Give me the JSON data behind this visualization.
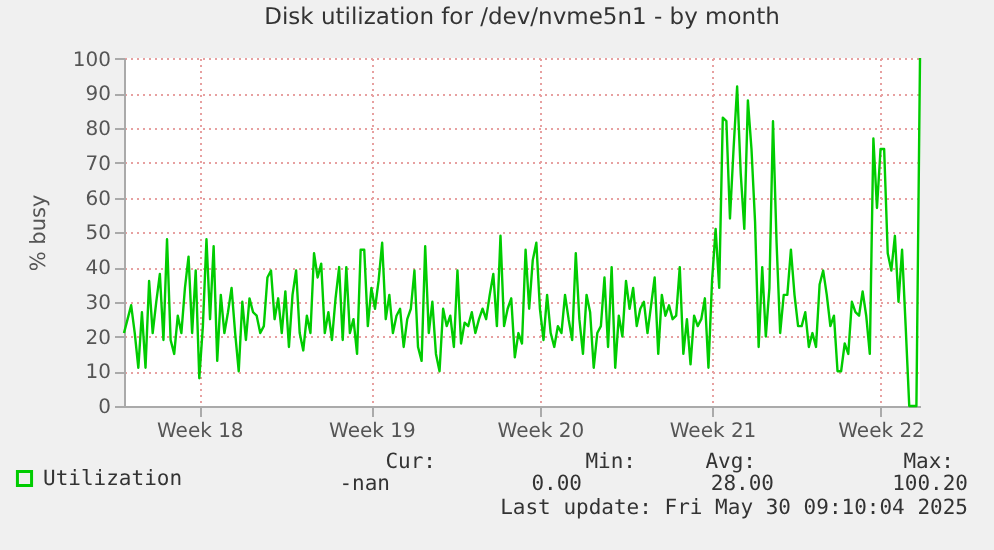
{
  "chart_data": {
    "type": "line",
    "title": "Disk utilization for /dev/nvme5n1 - by month",
    "ylabel": "% busy",
    "categories": [
      null,
      null,
      null,
      null,
      null,
      null,
      null,
      null,
      null,
      null,
      null,
      null,
      null,
      null,
      null,
      null,
      null,
      null,
      null,
      null,
      null,
      "Week 18",
      null,
      null,
      null,
      null,
      null,
      null,
      null,
      null,
      null,
      null,
      null,
      null,
      null,
      null,
      null,
      null,
      null,
      null,
      null,
      null,
      null,
      null,
      null,
      null,
      null,
      null,
      null,
      null,
      null,
      null,
      null,
      null,
      null,
      null,
      null,
      null,
      null,
      null,
      null,
      null,
      null,
      null,
      null,
      null,
      null,
      null,
      null,
      "Week 19",
      null,
      null,
      null,
      null,
      null,
      null,
      null,
      null,
      null,
      null,
      null,
      null,
      null,
      null,
      null,
      null,
      null,
      null,
      null,
      null,
      null,
      null,
      null,
      null,
      null,
      null,
      null,
      null,
      null,
      null,
      null,
      null,
      null,
      null,
      null,
      null,
      null,
      null,
      null,
      null,
      null,
      null,
      null,
      null,
      null,
      null,
      "Week 20",
      null,
      null,
      null,
      null,
      null,
      null,
      null,
      null,
      null,
      null,
      null,
      null,
      null,
      null,
      null,
      null,
      null,
      null,
      null,
      null,
      null,
      null,
      null,
      null,
      null,
      null,
      null,
      null,
      null,
      null,
      null,
      null,
      null,
      null,
      null,
      null,
      null,
      null,
      null,
      null,
      null,
      null,
      null,
      null,
      null,
      null,
      null,
      "Week 21",
      null,
      null,
      null,
      null,
      null,
      null,
      null,
      null,
      null,
      null,
      null,
      null,
      null,
      null,
      null,
      null,
      null,
      null,
      null,
      null,
      null,
      null,
      null,
      null,
      null,
      null,
      null,
      null,
      null,
      null,
      null,
      null,
      null,
      null,
      null,
      null,
      null,
      null,
      null,
      null,
      null,
      null,
      null,
      null,
      null,
      null,
      "Week 22",
      null,
      null,
      null,
      null,
      null,
      null,
      null,
      null,
      null,
      null,
      null
    ],
    "ylim": [
      0,
      100.2
    ],
    "yticks": [
      0,
      10,
      20,
      30,
      40,
      50,
      60,
      70,
      80,
      90,
      100
    ],
    "grid": true,
    "legend": "bottom left",
    "series": [
      {
        "name": "Utilization",
        "color": "#00cc00",
        "marker": "none",
        "values": [
          21,
          25,
          29,
          21,
          11,
          27,
          11,
          36,
          21,
          30,
          38,
          19,
          48,
          19,
          15,
          26,
          21,
          34,
          43,
          21,
          39,
          8,
          23,
          48,
          25,
          46,
          13,
          32,
          21,
          27,
          34,
          21,
          10,
          30,
          19,
          31,
          27,
          26,
          21,
          23,
          37,
          39,
          25,
          31,
          21,
          33,
          17,
          32,
          39,
          21,
          16,
          26,
          21,
          44,
          37,
          41,
          21,
          27,
          19,
          31,
          40,
          19,
          40,
          21,
          25,
          15,
          45,
          45,
          23,
          34,
          28,
          36,
          47,
          25,
          32,
          21,
          26,
          28,
          17,
          25,
          28,
          39,
          17,
          13,
          46,
          21,
          30,
          15,
          10,
          28,
          23,
          26,
          17,
          39,
          18,
          24,
          23,
          27,
          21,
          25,
          28,
          25,
          32,
          38,
          23,
          49,
          23,
          28,
          31,
          14,
          21,
          18,
          45,
          28,
          42,
          47,
          28,
          19,
          32,
          21,
          17,
          23,
          21,
          32,
          25,
          19,
          44,
          25,
          15,
          32,
          27,
          11,
          21,
          23,
          37,
          17,
          40,
          11,
          26,
          20,
          36,
          28,
          34,
          23,
          28,
          30,
          21,
          29,
          37,
          15,
          32,
          26,
          29,
          25,
          26,
          40,
          15,
          25,
          12,
          26,
          23,
          25,
          31,
          11,
          36,
          51,
          34,
          83,
          82,
          54,
          74,
          92,
          67,
          51,
          88,
          74,
          53,
          17,
          40,
          20,
          34,
          82,
          47,
          21,
          32,
          32,
          45,
          32,
          23,
          23,
          27,
          17,
          21,
          17,
          35,
          39,
          32,
          23,
          26,
          10,
          10,
          18,
          15,
          30,
          27,
          26,
          33,
          26,
          15,
          77,
          57,
          74,
          74,
          44,
          39,
          49,
          30,
          45,
          23,
          0,
          0,
          0,
          100.2
        ]
      }
    ],
    "annotations": [
      "Cur:",
      "Min:",
      "Avg:",
      "Max:",
      "-nan",
      "0.00",
      "28.00",
      "100.20",
      "Last update: Fri May 30 09:10:04 2025"
    ]
  }
}
